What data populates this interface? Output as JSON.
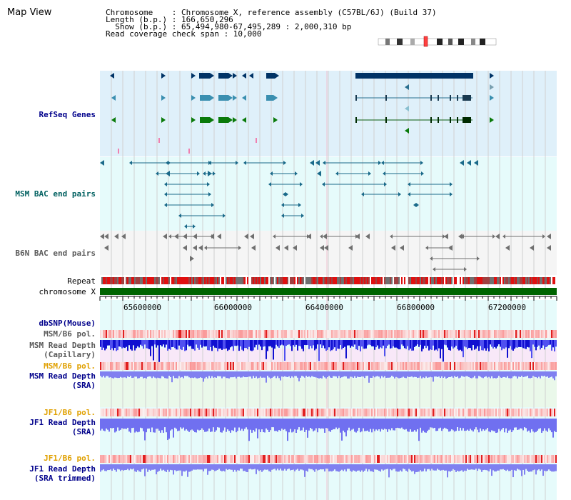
{
  "title": "Map View",
  "info": {
    "chromosome": "Chromosome    : Chromosome X, reference assembly (C57BL/6J) (Build 37)",
    "length": "Length (b.p.) : 166,650,296",
    "show": "  Show (b.p.) : 65,494,980-67,495,289 : 2,000,310 bp",
    "coverage": "Read coverage check span : 10,000"
  },
  "tracks": {
    "refseq": "RefSeq Genes",
    "msm_bac": "MSM BAC end pairs",
    "b6n_bac": "B6N BAC end pairs",
    "repeat": "Repeat",
    "chromosome": "chromosome X",
    "dbsnp": "dbSNP(Mouse)",
    "msm_b6_pol_1": "MSM/B6 pol.",
    "msm_depth_cap_1": "MSM Read Depth",
    "msm_depth_cap_2": "(Capillary)",
    "msm_b6_pol_2": "MSM/B6 pol.",
    "msm_depth_sra_1": "MSM Read Depth",
    "msm_depth_sra_2": "(SRA)",
    "jf1_b6_pol_1": "JF1/B6 pol.",
    "jf1_depth_sra_1": "JF1 Read Depth",
    "jf1_depth_sra_2": "(SRA)",
    "jf1_b6_pol_2": "JF1/B6 pol.",
    "jf1_depth_trim_1": "JF1 Read Depth",
    "jf1_depth_trim_2": "(SRA trimmed)"
  },
  "axis_ticks": [
    "65600000",
    "66000000",
    "66400000",
    "66800000",
    "67200000"
  ],
  "colors": {
    "refseq_bg": "#dff0fa",
    "bac_bg": "#e6fbfb",
    "b6n_bg": "#f5f5f5",
    "chromosome_bar": "#006400",
    "label_blue": "#00008b",
    "label_teal": "#006060",
    "label_gray": "#5a5a5a",
    "label_orange": "#e0a000",
    "depth_blue": "#2020e0",
    "depth_light": "#8080f0"
  }
}
